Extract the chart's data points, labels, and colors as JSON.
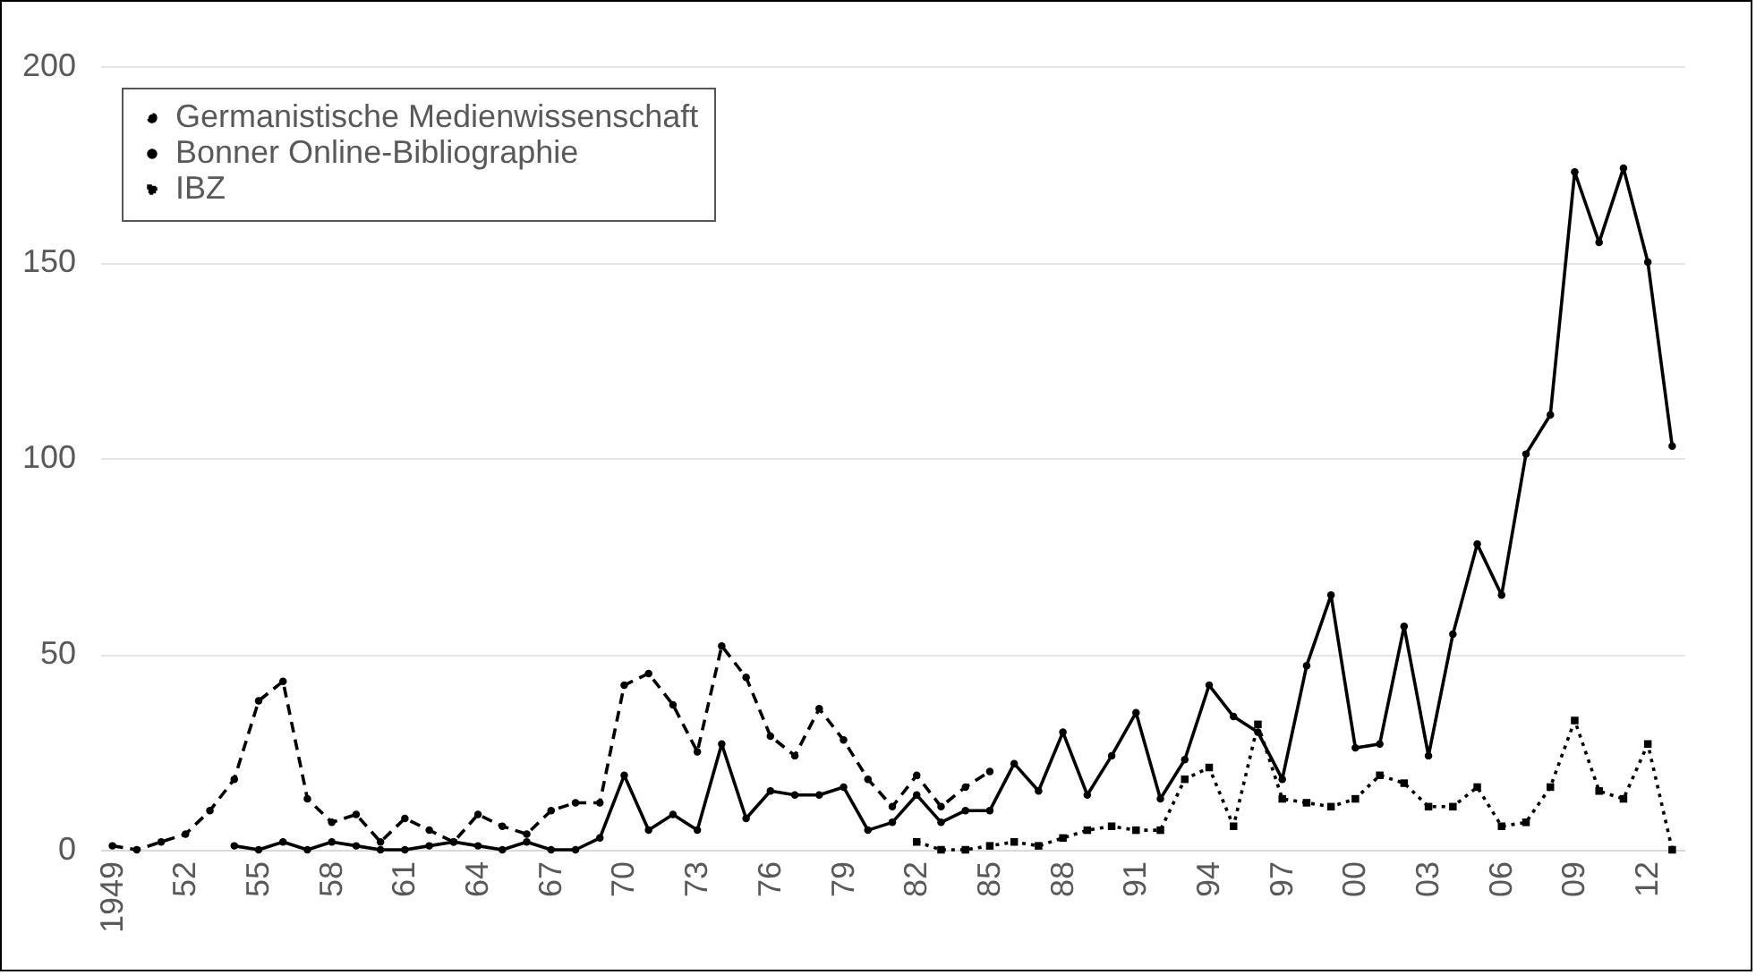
{
  "chart_data": {
    "type": "line",
    "categories": [
      "1949",
      null,
      null,
      "52",
      null,
      null,
      "55",
      null,
      null,
      "58",
      null,
      null,
      "61",
      null,
      null,
      "64",
      null,
      null,
      "67",
      null,
      null,
      "70",
      null,
      null,
      "73",
      null,
      null,
      "76",
      null,
      null,
      "79",
      null,
      null,
      "82",
      null,
      null,
      "85",
      null,
      null,
      "88",
      null,
      null,
      "91",
      null,
      null,
      "94",
      null,
      null,
      "97",
      null,
      null,
      "00",
      null,
      null,
      "03",
      null,
      null,
      "06",
      null,
      null,
      "09",
      null,
      null,
      "12",
      null
    ],
    "series": [
      {
        "name": "Germanistische Medienwissenschaft",
        "color": "#000000",
        "line_style": "dashed",
        "marker": "circle",
        "values": [
          1,
          0,
          2,
          4,
          10,
          18,
          38,
          43,
          13,
          7,
          9,
          2,
          8,
          5,
          2,
          9,
          6,
          4,
          10,
          12,
          12,
          42,
          45,
          37,
          25,
          52,
          44,
          29,
          24,
          36,
          28,
          18,
          11,
          19,
          11,
          16,
          20,
          null,
          null,
          null,
          null,
          null,
          null,
          null,
          null,
          null,
          null,
          null,
          null,
          null,
          null,
          null,
          null,
          null,
          null,
          null,
          null,
          null,
          null,
          null,
          null,
          null,
          null,
          null,
          null
        ]
      },
      {
        "name": "Bonner Online-Bibliographie",
        "color": "#000000",
        "line_style": "solid",
        "marker": "circle",
        "values": [
          null,
          null,
          null,
          null,
          null,
          1,
          0,
          2,
          0,
          2,
          1,
          0,
          0,
          1,
          2,
          1,
          0,
          2,
          0,
          0,
          3,
          19,
          5,
          9,
          5,
          27,
          8,
          15,
          14,
          14,
          16,
          5,
          7,
          14,
          7,
          10,
          10,
          22,
          15,
          30,
          14,
          24,
          35,
          13,
          23,
          42,
          34,
          30,
          18,
          47,
          65,
          26,
          27,
          57,
          24,
          55,
          78,
          65,
          101,
          111,
          173,
          155,
          174,
          150,
          103
        ]
      },
      {
        "name": "IBZ",
        "color": "#000000",
        "line_style": "dotted",
        "marker": "square",
        "values": [
          null,
          null,
          null,
          null,
          null,
          null,
          null,
          null,
          null,
          null,
          null,
          null,
          null,
          null,
          null,
          null,
          null,
          null,
          null,
          null,
          null,
          null,
          null,
          null,
          null,
          null,
          null,
          null,
          null,
          null,
          null,
          null,
          null,
          2,
          0,
          0,
          1,
          2,
          1,
          3,
          5,
          6,
          5,
          5,
          18,
          21,
          6,
          32,
          13,
          12,
          11,
          13,
          19,
          17,
          11,
          11,
          16,
          6,
          7,
          16,
          33,
          15,
          13,
          27,
          0
        ]
      }
    ],
    "ylim": [
      0,
      200
    ],
    "yticks": [
      0,
      50,
      100,
      150,
      200
    ],
    "grid": "y",
    "legend": "top left"
  }
}
